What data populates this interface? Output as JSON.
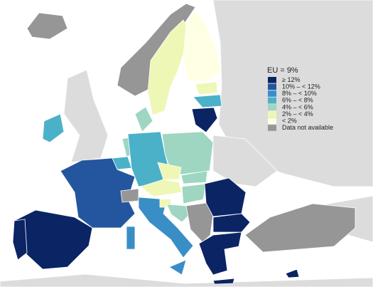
{
  "legend": {
    "title": "EU = 9%",
    "items": [
      {
        "label": "≥ 12%",
        "color": "#0b2464"
      },
      {
        "label": "10% – < 12%",
        "color": "#24569f"
      },
      {
        "label": "8% – < 10%",
        "color": "#3a8ec6"
      },
      {
        "label": "6% – < 8%",
        "color": "#4bb1c9"
      },
      {
        "label": "4% – < 6%",
        "color": "#9ed6c1"
      },
      {
        "label": "2% – < 4%",
        "color": "#eef7b5"
      },
      {
        "label": "< 2%",
        "color": "#ffffe3"
      },
      {
        "label": "Data not available",
        "color": "#969696"
      }
    ]
  }
}
